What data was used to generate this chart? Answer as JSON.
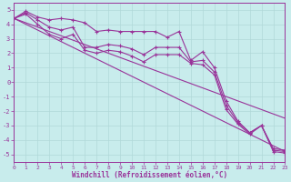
{
  "xlabel": "Windchill (Refroidissement éolien,°C)",
  "line_color": "#993399",
  "bg_color": "#c8ecec",
  "grid_color": "#b0d8d8",
  "xlim": [
    0,
    23
  ],
  "ylim": [
    -5.5,
    5.5
  ],
  "yticks": [
    -5,
    -4,
    -3,
    -2,
    -1,
    0,
    1,
    2,
    3,
    4,
    5
  ],
  "xticks": [
    0,
    1,
    2,
    3,
    4,
    5,
    6,
    7,
    8,
    9,
    10,
    11,
    12,
    13,
    14,
    15,
    16,
    17,
    18,
    19,
    20,
    21,
    22,
    23
  ],
  "line1_x": [
    0,
    1,
    2,
    3,
    4,
    5,
    6,
    7,
    8,
    9,
    10,
    11,
    12,
    13,
    14,
    15,
    16,
    17,
    18,
    19,
    20,
    21,
    22,
    23
  ],
  "line1_y": [
    4.4,
    4.9,
    4.5,
    4.3,
    4.4,
    4.3,
    4.1,
    3.5,
    3.6,
    3.5,
    3.5,
    3.5,
    3.5,
    3.1,
    3.5,
    1.5,
    2.1,
    1.0,
    -1.3,
    -2.7,
    -3.5,
    -3.0,
    -4.6,
    -4.7
  ],
  "line2_x": [
    0,
    1,
    2,
    3,
    4,
    5,
    6,
    7,
    8,
    9,
    10,
    11,
    12,
    13,
    14,
    15,
    16,
    17,
    18,
    19,
    20,
    21,
    22,
    23
  ],
  "line2_y": [
    4.4,
    4.8,
    4.3,
    3.8,
    3.6,
    3.8,
    2.4,
    2.4,
    2.6,
    2.5,
    2.3,
    1.9,
    2.4,
    2.4,
    2.4,
    1.4,
    1.5,
    0.7,
    -1.6,
    -2.8,
    -3.5,
    -3.0,
    -4.7,
    -4.8
  ],
  "line3_x": [
    0,
    1,
    2,
    3,
    4,
    5,
    6,
    7,
    8,
    9,
    10,
    11,
    12,
    13,
    14,
    15,
    16,
    17,
    18,
    19,
    20,
    21,
    22,
    23
  ],
  "line3_y": [
    4.4,
    4.7,
    4.0,
    3.3,
    3.0,
    3.3,
    2.2,
    2.0,
    2.2,
    2.1,
    1.8,
    1.4,
    1.9,
    1.9,
    1.9,
    1.3,
    1.2,
    0.5,
    -1.9,
    -2.9,
    -3.6,
    -3.0,
    -4.8,
    -4.9
  ],
  "line_straight1": [
    4.4,
    4.1,
    3.8,
    3.5,
    3.2,
    2.9,
    2.6,
    2.3,
    2.0,
    1.7,
    1.4,
    1.1,
    0.8,
    0.5,
    0.2,
    -0.1,
    -0.4,
    -0.7,
    -1.0,
    -1.3,
    -1.6,
    -1.9,
    -2.2,
    -2.5
  ],
  "line_straight2": [
    4.4,
    4.0,
    3.6,
    3.2,
    2.8,
    2.4,
    2.0,
    1.6,
    1.2,
    0.8,
    0.4,
    0.0,
    -0.4,
    -0.8,
    -1.2,
    -1.6,
    -2.0,
    -2.4,
    -2.8,
    -3.2,
    -3.6,
    -4.0,
    -4.4,
    -4.8
  ]
}
